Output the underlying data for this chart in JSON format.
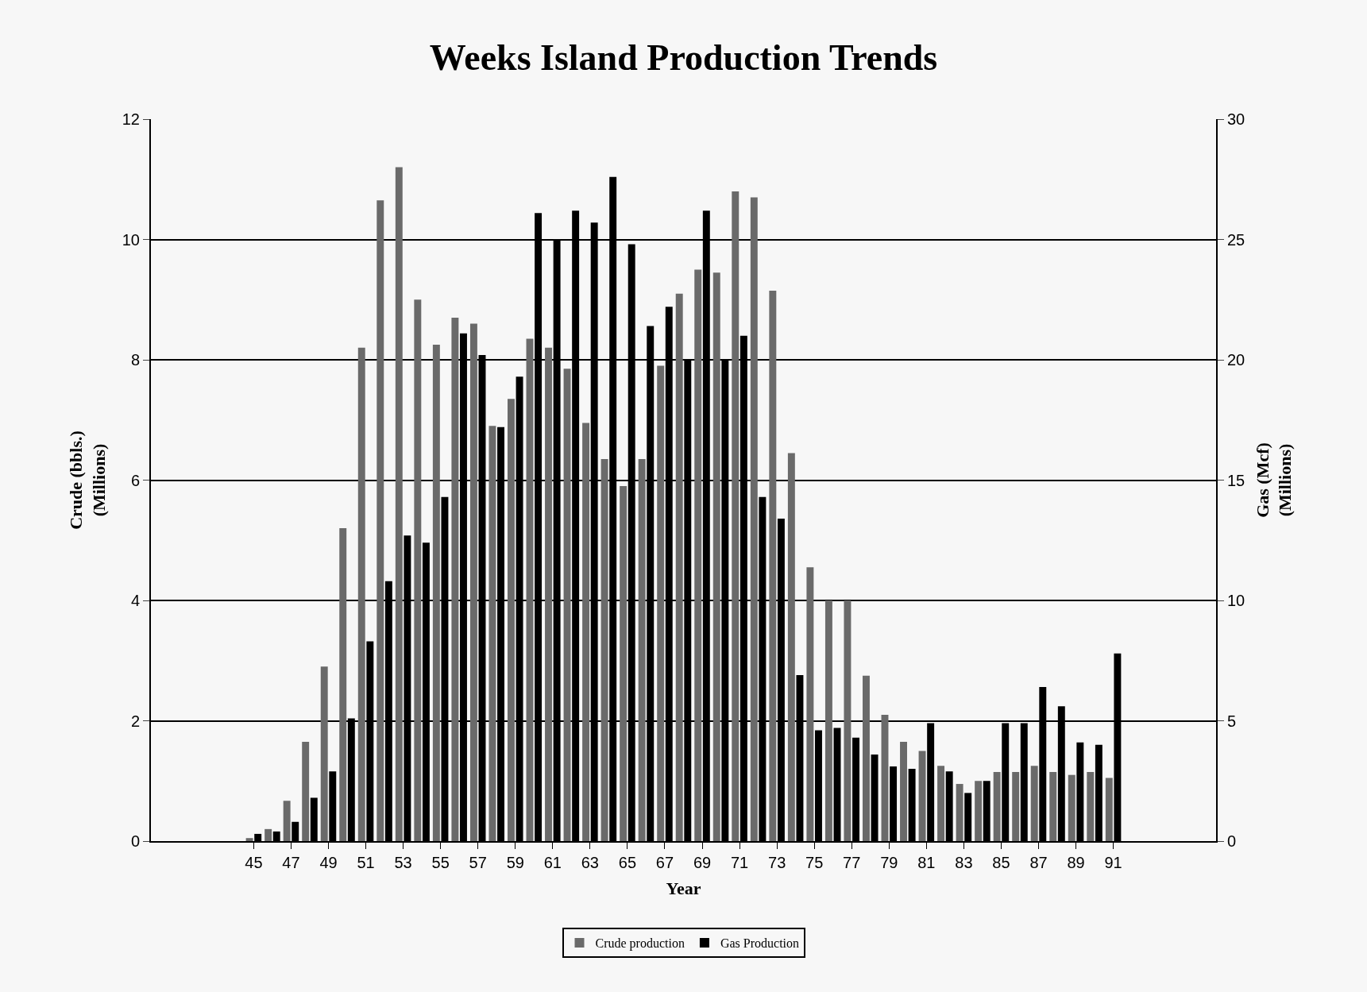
{
  "chart_data": {
    "type": "bar",
    "title": "Weeks Island Production Trends",
    "xlabel": "Year",
    "ylabel": "Crude (bbls.)\n(Millions)",
    "y2label": "Gas (Mcf)\n(Millions)",
    "x": [
      45,
      46,
      47,
      48,
      49,
      50,
      51,
      52,
      53,
      54,
      55,
      56,
      57,
      58,
      59,
      60,
      61,
      62,
      63,
      64,
      65,
      66,
      67,
      68,
      69,
      70,
      71,
      72,
      73,
      74,
      75,
      76,
      77,
      78,
      79,
      80,
      81,
      82,
      83,
      84,
      85,
      86,
      87,
      88,
      89,
      90,
      91
    ],
    "series": [
      {
        "name": "Crude production",
        "color": "#6a6a6a",
        "values": [
          0.05,
          0.2,
          0.67,
          1.65,
          2.9,
          5.2,
          8.2,
          10.65,
          11.2,
          9.0,
          8.25,
          8.7,
          8.6,
          6.9,
          7.35,
          8.35,
          8.2,
          7.85,
          6.95,
          6.35,
          5.9,
          6.35,
          7.9,
          9.1,
          9.5,
          9.45,
          10.8,
          10.7,
          9.15,
          6.45,
          4.55,
          4.0,
          4.0,
          2.75,
          2.1,
          1.65,
          1.5,
          1.25,
          0.95,
          1.0,
          1.15,
          1.15,
          1.25,
          1.15,
          1.1,
          1.15,
          1.05
        ]
      },
      {
        "name": "Gas Production",
        "color": "#000000",
        "axis": "y2",
        "values": [
          0.3,
          0.4,
          0.8,
          1.8,
          2.9,
          5.1,
          8.3,
          10.8,
          12.7,
          12.4,
          14.3,
          21.1,
          20.2,
          17.2,
          19.3,
          26.1,
          25.0,
          26.2,
          25.7,
          27.6,
          24.8,
          21.4,
          22.2,
          20.0,
          26.2,
          20.0,
          21.0,
          14.3,
          13.4,
          6.9,
          4.6,
          4.7,
          4.3,
          3.6,
          3.1,
          3.0,
          4.9,
          2.9,
          2.0,
          2.5,
          4.9,
          4.9,
          6.4,
          5.6,
          4.1,
          4.0,
          7.8
        ]
      }
    ],
    "xlim": [
      39.5,
      96.5
    ],
    "xticks": [
      45,
      47,
      49,
      51,
      53,
      55,
      57,
      59,
      61,
      63,
      65,
      67,
      69,
      71,
      73,
      75,
      77,
      79,
      81,
      83,
      85,
      87,
      89,
      91
    ],
    "ylim": [
      0,
      12
    ],
    "yticks": [
      0,
      2,
      4,
      6,
      8,
      10,
      12
    ],
    "y2lim": [
      0,
      30
    ],
    "y2ticks": [
      0,
      5,
      10,
      15,
      20,
      25,
      30
    ],
    "grid": "y",
    "legend": "bottom"
  }
}
